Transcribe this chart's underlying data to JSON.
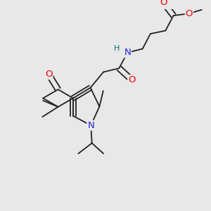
{
  "bg_color": "#e8e8e8",
  "bond_color": "#222222",
  "bond_width": 1.3,
  "atom_colors": {
    "O": "#ee0000",
    "N": "#2222cc",
    "H": "#007777",
    "C": "#111111"
  },
  "font_size_atom": 9.5,
  "font_size_small": 8.0
}
